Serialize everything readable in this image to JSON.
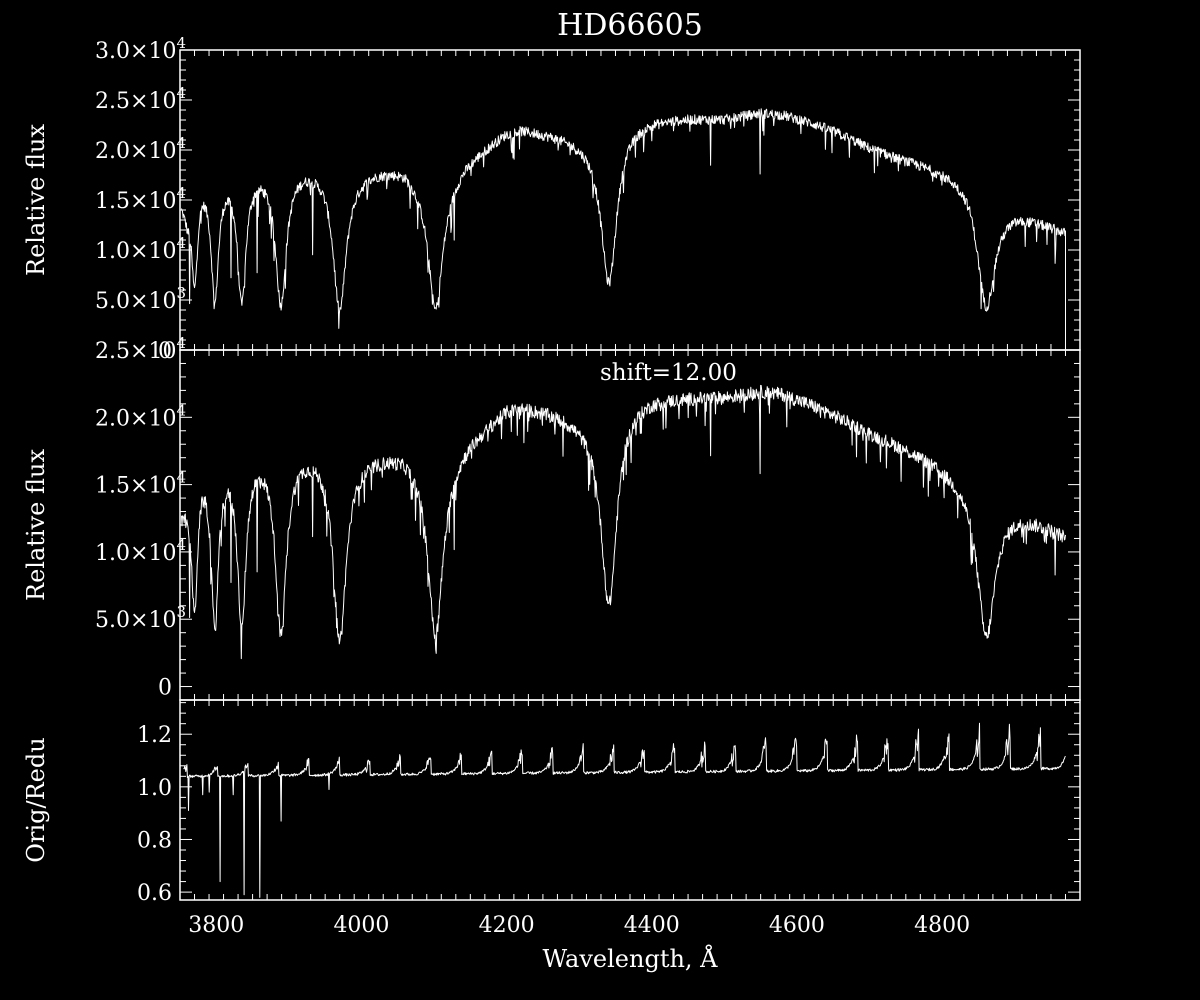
{
  "figure": {
    "title": "HD66605",
    "xlabel": "Wavelength, Å",
    "colors": {
      "background": "#000000",
      "foreground": "#ffffff"
    }
  },
  "chart_data": [
    {
      "type": "line",
      "title": "HD66605",
      "ylabel": "Relative flux",
      "xlim": [
        3750,
        4990
      ],
      "ylim": [
        0,
        30000
      ],
      "y_ticks": [
        {
          "value": 0,
          "label": "0"
        },
        {
          "value": 5000,
          "label": "5.0×10",
          "exp": "3"
        },
        {
          "value": 10000,
          "label": "1.0×10",
          "exp": "4"
        },
        {
          "value": 15000,
          "label": "1.5×10",
          "exp": "4"
        },
        {
          "value": 20000,
          "label": "2.0×10",
          "exp": "4"
        },
        {
          "value": 25000,
          "label": "2.5×10",
          "exp": "4"
        },
        {
          "value": 30000,
          "label": "3.0×10",
          "exp": "4"
        }
      ],
      "continuum": [
        [
          3752,
          15000
        ],
        [
          3760,
          14000
        ],
        [
          3770,
          17000
        ],
        [
          3780,
          17800
        ],
        [
          3800,
          17500
        ],
        [
          3820,
          18000
        ],
        [
          3840,
          18200
        ],
        [
          3860,
          18400
        ],
        [
          3880,
          18500
        ],
        [
          3900,
          18500
        ],
        [
          3920,
          18600
        ],
        [
          3950,
          18600
        ],
        [
          3990,
          18000
        ],
        [
          4020,
          18300
        ],
        [
          4060,
          18500
        ],
        [
          4080,
          17500
        ],
        [
          4100,
          17000
        ],
        [
          4120,
          17500
        ],
        [
          4140,
          19000
        ],
        [
          4170,
          20500
        ],
        [
          4200,
          22000
        ],
        [
          4220,
          22300
        ],
        [
          4260,
          21800
        ],
        [
          4300,
          21200
        ],
        [
          4330,
          21000
        ],
        [
          4345,
          22000
        ],
        [
          4360,
          22800
        ],
        [
          4400,
          23200
        ],
        [
          4450,
          23300
        ],
        [
          4500,
          23200
        ],
        [
          4550,
          23800
        ],
        [
          4580,
          23600
        ],
        [
          4620,
          22800
        ],
        [
          4660,
          21700
        ],
        [
          4700,
          20300
        ],
        [
          4740,
          19300
        ],
        [
          4780,
          18500
        ],
        [
          4820,
          17600
        ],
        [
          4840,
          17000
        ],
        [
          4860,
          14000
        ],
        [
          4880,
          14000
        ],
        [
          4900,
          13800
        ],
        [
          4930,
          13000
        ],
        [
          4950,
          12400
        ],
        [
          4970,
          11800
        ]
      ],
      "absorption_lines": [
        [
          3770,
          0.62,
          5
        ],
        [
          3798,
          0.72,
          6
        ],
        [
          3835,
          0.74,
          7
        ],
        [
          3889,
          0.75,
          9
        ],
        [
          3970,
          0.78,
          11
        ],
        [
          4102,
          0.76,
          12
        ],
        [
          4341,
          0.69,
          13
        ],
        [
          4861,
          0.69,
          14
        ]
      ],
      "deep_spikes": [
        [
          3763,
          0.6
        ],
        [
          3820,
          0.5
        ],
        [
          3856,
          0.5
        ],
        [
          3933,
          0.35
        ],
        [
          4128,
          0.3
        ],
        [
          4481,
          0.2
        ],
        [
          4549,
          0.25
        ],
        [
          4956,
          0.3
        ]
      ],
      "noise_amplitude": 500,
      "x_end_line_to": 0
    },
    {
      "type": "line",
      "ylabel": "Relative flux",
      "xlim": [
        3750,
        4990
      ],
      "ylim": [
        -1000,
        25000
      ],
      "y_ticks": [
        {
          "value": 0,
          "label": "0"
        },
        {
          "value": 5000,
          "label": "5.0×10",
          "exp": "3"
        },
        {
          "value": 10000,
          "label": "1.0×10",
          "exp": "4"
        },
        {
          "value": 15000,
          "label": "1.5×10",
          "exp": "4"
        },
        {
          "value": 20000,
          "label": "2.0×10",
          "exp": "4"
        },
        {
          "value": 25000,
          "label": "2.5×10",
          "exp": "4"
        }
      ],
      "annotation": "shift=12.00",
      "continuum": [
        [
          3752,
          14000
        ],
        [
          3760,
          14000
        ],
        [
          3770,
          16500
        ],
        [
          3780,
          17200
        ],
        [
          3800,
          17000
        ],
        [
          3820,
          17400
        ],
        [
          3840,
          17600
        ],
        [
          3860,
          17800
        ],
        [
          3880,
          17800
        ],
        [
          3900,
          17700
        ],
        [
          3920,
          17800
        ],
        [
          3950,
          17800
        ],
        [
          3990,
          17200
        ],
        [
          4020,
          17400
        ],
        [
          4060,
          17600
        ],
        [
          4080,
          17000
        ],
        [
          4100,
          16500
        ],
        [
          4120,
          17000
        ],
        [
          4140,
          18200
        ],
        [
          4170,
          19500
        ],
        [
          4200,
          20800
        ],
        [
          4220,
          21000
        ],
        [
          4260,
          20600
        ],
        [
          4300,
          20000
        ],
        [
          4330,
          19800
        ],
        [
          4345,
          20600
        ],
        [
          4360,
          21300
        ],
        [
          4400,
          21600
        ],
        [
          4450,
          21600
        ],
        [
          4500,
          21600
        ],
        [
          4550,
          22000
        ],
        [
          4580,
          21800
        ],
        [
          4620,
          21000
        ],
        [
          4660,
          20000
        ],
        [
          4700,
          18900
        ],
        [
          4740,
          18000
        ],
        [
          4780,
          17000
        ],
        [
          4820,
          15800
        ],
        [
          4840,
          15000
        ],
        [
          4860,
          13000
        ],
        [
          4880,
          13100
        ],
        [
          4900,
          12900
        ],
        [
          4930,
          12300
        ],
        [
          4950,
          11800
        ],
        [
          4970,
          11200
        ]
      ],
      "absorption_lines": [
        [
          3770,
          0.66,
          5
        ],
        [
          3798,
          0.74,
          6
        ],
        [
          3835,
          0.75,
          7
        ],
        [
          3889,
          0.78,
          9
        ],
        [
          3970,
          0.8,
          11
        ],
        [
          4102,
          0.77,
          12
        ],
        [
          4341,
          0.7,
          13
        ],
        [
          4861,
          0.72,
          14
        ]
      ],
      "deep_spikes": [
        [
          3763,
          0.55
        ],
        [
          3820,
          0.45
        ],
        [
          3856,
          0.45
        ],
        [
          3933,
          0.3
        ],
        [
          4128,
          0.3
        ],
        [
          4481,
          0.2
        ],
        [
          4549,
          0.25
        ],
        [
          4956,
          0.3
        ]
      ],
      "noise_amplitude": 500
    },
    {
      "type": "line",
      "ylabel": "Orig/Redu",
      "xlabel": "Wavelength, Å",
      "xlim": [
        3750,
        4990
      ],
      "ylim": [
        0.57,
        1.33
      ],
      "x_ticks": [
        3800,
        4000,
        4200,
        4400,
        4600,
        4800
      ],
      "y_ticks": [
        {
          "value": 0.6,
          "label": "0.6"
        },
        {
          "value": 0.8,
          "label": "0.8"
        },
        {
          "value": 1.0,
          "label": "1.0"
        },
        {
          "value": 1.2,
          "label": "1.2"
        }
      ],
      "order_start": 3760,
      "order_step": 42,
      "base_level": 1.04,
      "base_trend": 0.03,
      "peak_start": 0.04,
      "peak_growth": 0.12,
      "deep_spikes": [
        [
          3762,
          0.91
        ],
        [
          3781,
          0.97
        ],
        [
          3790,
          0.98
        ],
        [
          3805,
          0.64
        ],
        [
          3823,
          0.97
        ],
        [
          3838,
          0.59
        ],
        [
          3860,
          0.58
        ],
        [
          3889,
          0.87
        ],
        [
          3955,
          0.99
        ]
      ]
    }
  ]
}
